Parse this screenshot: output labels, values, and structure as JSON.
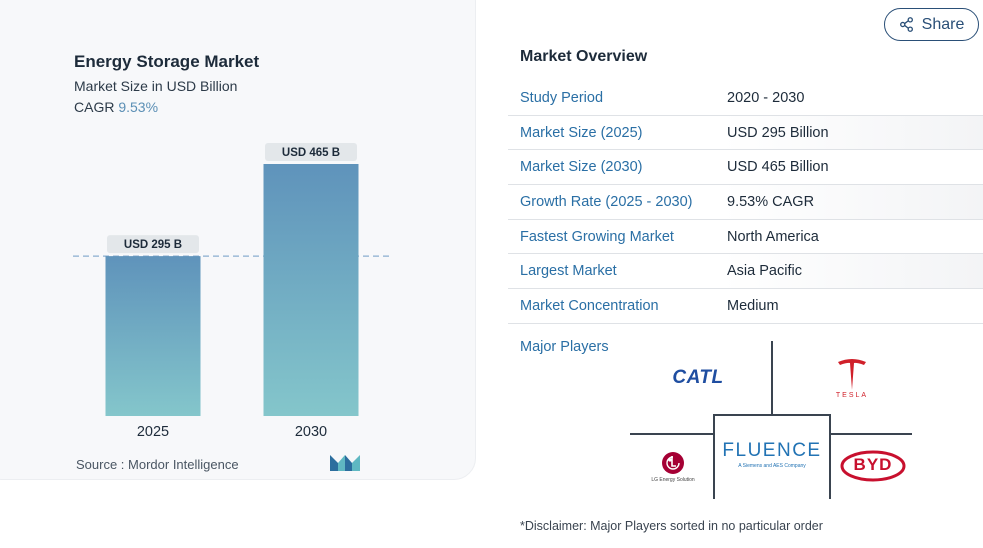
{
  "share": {
    "label": "Share",
    "icon": "share-icon"
  },
  "chart": {
    "title": "Energy Storage Market",
    "subtitle": "Market Size in USD Billion",
    "cagr_label": "CAGR",
    "cagr_value": "9.53%",
    "source": "Source :  Mordor Intelligence",
    "brand_logo": "mordor-intelligence-logo"
  },
  "chart_data": {
    "type": "bar",
    "categories": [
      "2025",
      "2030"
    ],
    "values": [
      295,
      465
    ],
    "data_labels": [
      "USD 295 B",
      "USD 465 B"
    ],
    "title": "Energy Storage Market",
    "subtitle": "Market Size in USD Billion",
    "xlabel": "",
    "ylabel": "",
    "ylim": [
      0,
      500
    ],
    "grid": false,
    "reference_line": 295,
    "colors": {
      "bar_top": "#5f93bb",
      "bar_bottom": "#84c6cb",
      "label_bg": "#e3e7ea",
      "ref_line": "#8aaed0"
    }
  },
  "overview": {
    "title": "Market Overview",
    "rows": [
      {
        "key": "Study Period",
        "value": "2020 - 2030"
      },
      {
        "key": "Market Size (2025)",
        "value": "USD 295 Billion"
      },
      {
        "key": "Market Size (2030)",
        "value": "USD 465 Billion"
      },
      {
        "key": "Growth Rate (2025 - 2030)",
        "value": "9.53% CAGR"
      },
      {
        "key": "Fastest Growing Market",
        "value": "North America"
      },
      {
        "key": "Largest Market",
        "value": "Asia Pacific"
      },
      {
        "key": "Market Concentration",
        "value": "Medium"
      }
    ]
  },
  "players": {
    "label": "Major Players",
    "logos": {
      "catl": "CATL",
      "tesla": "TESLA",
      "fluence": "FLUENCE",
      "fluence_tag": "A Siemens and AES Company",
      "lg": "LG Energy Solution",
      "byd": "BYD"
    }
  },
  "disclaimer": "*Disclaimer: Major Players sorted in no particular order"
}
